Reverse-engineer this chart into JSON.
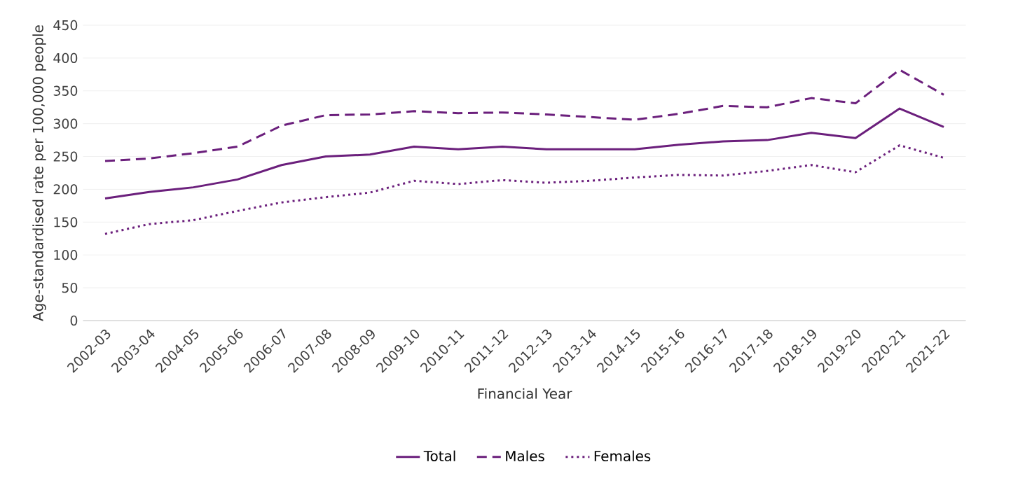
{
  "chart_data": {
    "type": "line",
    "xlabel": "Financial Year",
    "ylabel": "Age-standardised rate per 100,000 people",
    "categories": [
      "2002-03",
      "2003-04",
      "2004-05",
      "2005-06",
      "2006-07",
      "2007-08",
      "2008-09",
      "2009-10",
      "2010-11",
      "2011-12",
      "2012-13",
      "2013-14",
      "2014-15",
      "2015-16",
      "2016-17",
      "2017-18",
      "2018-19",
      "2019-20",
      "2020-21",
      "2021-22"
    ],
    "series": [
      {
        "name": "Total",
        "color": "#6b1f7c",
        "line_style": "solid",
        "values": [
          186,
          196,
          203,
          215,
          237,
          250,
          253,
          265,
          261,
          265,
          261,
          261,
          261,
          268,
          273,
          275,
          286,
          278,
          323,
          295
        ]
      },
      {
        "name": "Males",
        "color": "#6b1f7c",
        "line_style": "dashed",
        "values": [
          243,
          247,
          255,
          265,
          297,
          313,
          314,
          319,
          316,
          317,
          314,
          310,
          306,
          315,
          327,
          325,
          339,
          331,
          382,
          344
        ]
      },
      {
        "name": "Females",
        "color": "#6b1f7c",
        "line_style": "dotted",
        "values": [
          132,
          147,
          153,
          167,
          180,
          188,
          195,
          213,
          208,
          214,
          210,
          213,
          218,
          222,
          221,
          228,
          237,
          226,
          267,
          248
        ]
      }
    ],
    "ylim": [
      0,
      450
    ],
    "yticks": [
      0,
      50,
      100,
      150,
      200,
      250,
      300,
      350,
      400,
      450
    ],
    "grid": "y",
    "legend": "bottom",
    "marker": "none"
  }
}
